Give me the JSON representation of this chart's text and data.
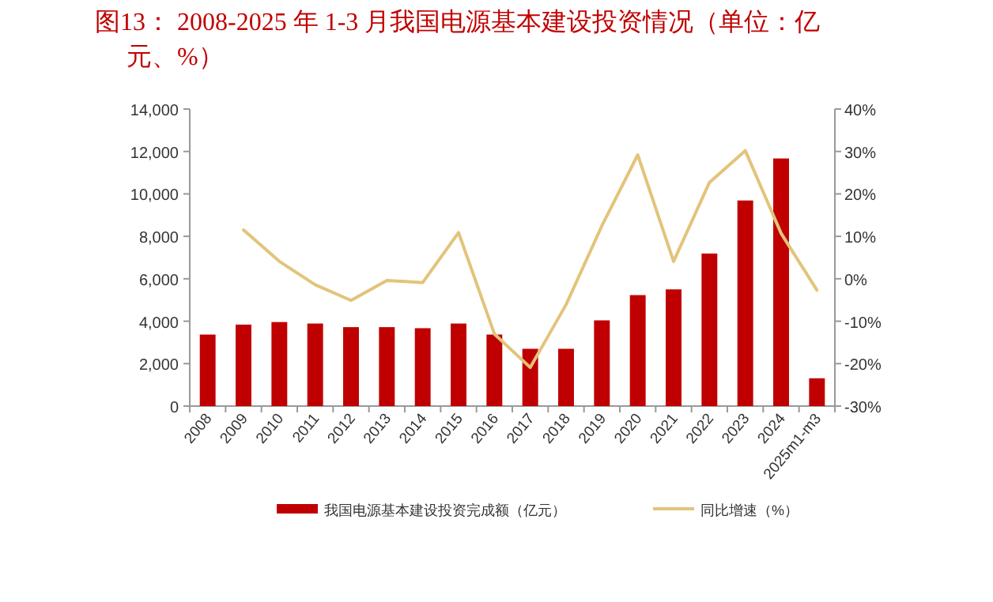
{
  "chart_data": {
    "type": "bar",
    "title": "图13：  2008-2025 年 1-3 月我国电源基本建设投资情况（单位：亿元、%）",
    "categories": [
      "2008",
      "2009",
      "2010",
      "2011",
      "2012",
      "2013",
      "2014",
      "2015",
      "2016",
      "2017",
      "2018",
      "2019",
      "2020",
      "2021",
      "2022",
      "2023",
      "2024",
      "2025m1-m3"
    ],
    "series": [
      {
        "name": "我国电源基本建设投资完成额（亿元）",
        "color": "#c00000",
        "values": [
          3370,
          3840,
          3960,
          3890,
          3720,
          3720,
          3670,
          3890,
          3370,
          2700,
          2700,
          4040,
          5230,
          5500,
          7190,
          9690,
          11670,
          1310
        ]
      },
      {
        "name": "同比增速（%）",
        "type": "line",
        "axis": "y2",
        "color": "#e2c47a",
        "values": [
          null,
          11.5,
          4.1,
          -1.4,
          -5.1,
          -0.4,
          -0.9,
          10.9,
          -13.0,
          -20.9,
          -6.1,
          12.5,
          29.2,
          4.1,
          22.7,
          30.2,
          10.7,
          -2.7
        ]
      }
    ],
    "ylim": [
      0,
      14000
    ],
    "yticks": [
      {
        "value": 0,
        "label": "0"
      },
      {
        "value": 2000,
        "label": "2,000"
      },
      {
        "value": 4000,
        "label": "4,000"
      },
      {
        "value": 6000,
        "label": "6,000"
      },
      {
        "value": 8000,
        "label": "8,000"
      },
      {
        "value": 10000,
        "label": "10,000"
      },
      {
        "value": 12000,
        "label": "12,000"
      },
      {
        "value": 14000,
        "label": "14,000"
      }
    ],
    "y2lim": [
      -30,
      40
    ],
    "y2ticks": [
      {
        "value": -30,
        "label": "-30%"
      },
      {
        "value": -20,
        "label": "-20%"
      },
      {
        "value": -10,
        "label": "-10%"
      },
      {
        "value": 0,
        "label": "0%"
      },
      {
        "value": 10,
        "label": "10%"
      },
      {
        "value": 20,
        "label": "20%"
      },
      {
        "value": 30,
        "label": "30%"
      },
      {
        "value": 40,
        "label": "40%"
      }
    ],
    "legend": "bottom",
    "grid": false
  }
}
